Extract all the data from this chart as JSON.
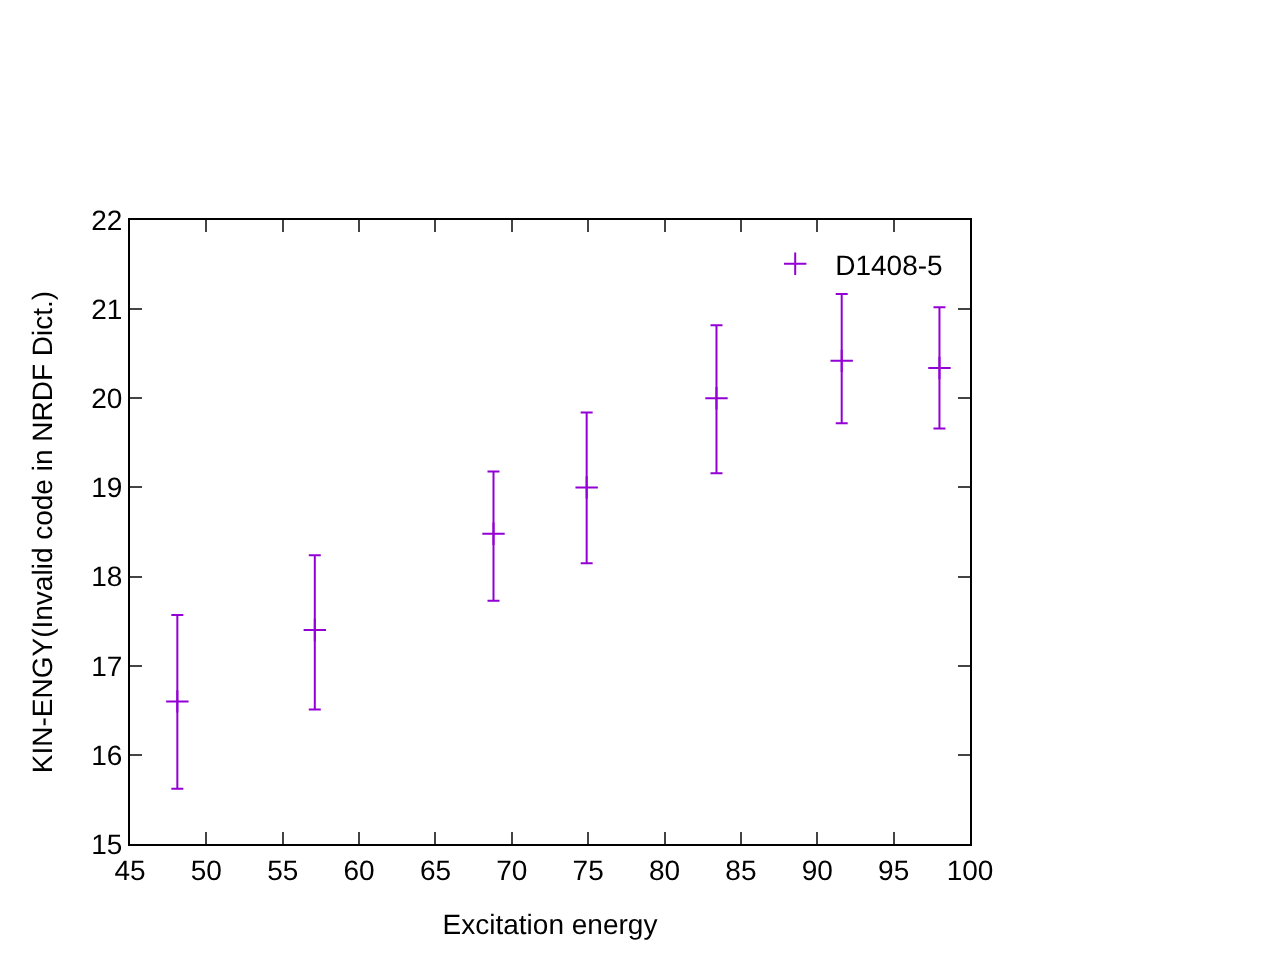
{
  "chart_data": {
    "type": "scatter",
    "xlabel": "Excitation energy",
    "ylabel": "KIN-ENGY(Invalid code in NRDF Dict.)",
    "x": [
      48.1,
      57.1,
      68.8,
      74.9,
      83.4,
      91.6,
      98.0
    ],
    "series": [
      {
        "name": "D1408-5",
        "color": "#9400d3",
        "values": [
          16.6,
          17.4,
          18.48,
          19.0,
          20.0,
          20.42,
          20.34
        ],
        "errors": [
          [
            15.62,
            17.57
          ],
          [
            16.51,
            18.24
          ],
          [
            17.73,
            19.18
          ],
          [
            18.15,
            19.84
          ],
          [
            19.16,
            20.82
          ],
          [
            19.72,
            21.17
          ],
          [
            19.66,
            21.02
          ]
        ]
      }
    ],
    "xlim": [
      45,
      100
    ],
    "xticks": [
      45,
      50,
      55,
      60,
      65,
      70,
      75,
      80,
      85,
      90,
      95,
      100
    ],
    "ylim": [
      15,
      22
    ],
    "yticks": [
      15,
      16,
      17,
      18,
      19,
      20,
      21,
      22
    ],
    "marker": "cross",
    "legend": "top right"
  }
}
